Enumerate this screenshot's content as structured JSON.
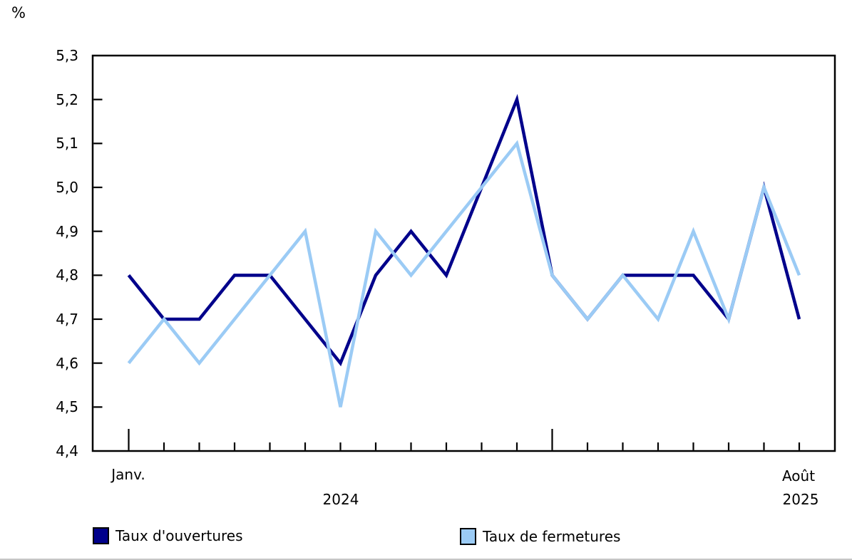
{
  "chart": {
    "unit": "%",
    "y_ticks": [
      "5,3",
      "5,2",
      "5,1",
      "5,0",
      "4,9",
      "4,8",
      "4,7",
      "4,6",
      "4,5",
      "4,4"
    ],
    "x_axis": {
      "start_month": "Janv.",
      "start_year": "2024",
      "end_month": "Août",
      "end_year": "2025"
    },
    "series": [
      {
        "name": "Taux d'ouvertures",
        "color": "#00008B"
      },
      {
        "name": "Taux de fermetures",
        "color": "#9BCBF5"
      }
    ]
  },
  "chart_data": {
    "type": "line",
    "x": [
      "2024-01",
      "2024-02",
      "2024-03",
      "2024-04",
      "2024-05",
      "2024-06",
      "2024-07",
      "2024-08",
      "2024-09",
      "2024-10",
      "2024-11",
      "2024-12",
      "2025-01",
      "2025-02",
      "2025-03",
      "2025-04",
      "2025-05",
      "2025-06",
      "2025-07",
      "2025-08"
    ],
    "series": [
      {
        "name": "Taux d'ouvertures",
        "color": "#00008B",
        "values": [
          4.8,
          4.7,
          4.7,
          4.8,
          4.8,
          4.7,
          4.6,
          4.8,
          4.9,
          4.8,
          5.0,
          5.2,
          4.8,
          4.7,
          4.8,
          4.8,
          4.8,
          4.7,
          5.0,
          4.7
        ]
      },
      {
        "name": "Taux de fermetures",
        "color": "#9BCBF5",
        "values": [
          4.6,
          4.7,
          4.6,
          4.7,
          4.8,
          4.9,
          4.5,
          4.9,
          4.8,
          4.9,
          5.0,
          5.1,
          4.8,
          4.7,
          4.8,
          4.7,
          4.9,
          4.7,
          5.0,
          4.8
        ]
      }
    ],
    "title": "",
    "xlabel": "",
    "ylabel": "%",
    "ylim": [
      4.4,
      5.3
    ],
    "y_tick_step": 0.1,
    "x_tick_labels_visible": [
      "Janv. 2024",
      "Août 2025"
    ],
    "grid": false,
    "legend_position": "bottom"
  }
}
